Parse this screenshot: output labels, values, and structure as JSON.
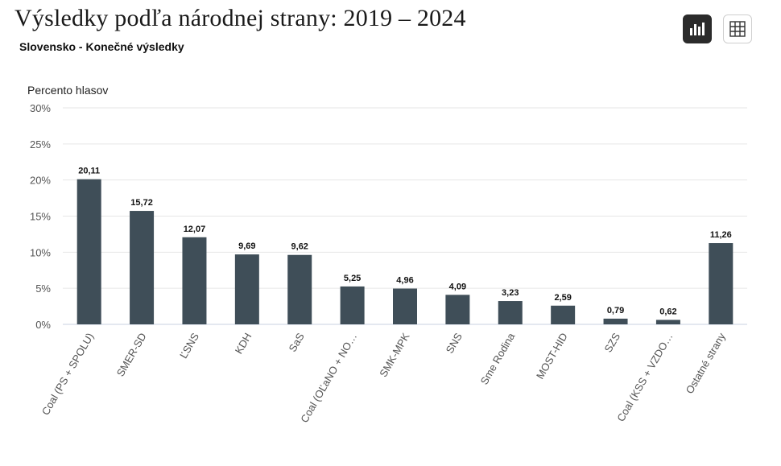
{
  "header": {
    "title": "Výsledky podľa národnej strany: 2019 – 2024",
    "subtitle": "Slovensko - Konečné výsledky"
  },
  "toolbar": {
    "chart_view_icon": "bar-chart-icon",
    "table_view_icon": "table-grid-icon"
  },
  "colors": {
    "bar": "#3f4e58",
    "grid": "#e6e6e6",
    "axis_text": "#555555",
    "active_button": "#2b2b2b"
  },
  "chart_data": {
    "type": "bar",
    "ylabel": "Percento hlasov",
    "ylim": [
      0,
      30
    ],
    "yticks": [
      "0%",
      "5%",
      "10%",
      "15%",
      "20%",
      "25%",
      "30%"
    ],
    "grid": true,
    "categories": [
      "Coal (PS + SPOLU)",
      "SMER-SD",
      "ĽSNS",
      "KDH",
      "SaS",
      "Coal (OĽaNO + NO…",
      "SMK-MPK",
      "SNS",
      "Sme Rodina",
      "MOST-HID",
      "SZS",
      "Coal (KSS + VZDO…",
      "Ostatné strany"
    ],
    "values": [
      20.11,
      15.72,
      12.07,
      9.69,
      9.62,
      5.25,
      4.96,
      4.09,
      3.23,
      2.59,
      0.79,
      0.62,
      11.26
    ],
    "value_labels": [
      "20,11",
      "15,72",
      "12,07",
      "9,69",
      "9,62",
      "5,25",
      "4,96",
      "4,09",
      "3,23",
      "2,59",
      "0,79",
      "0,62",
      "11,26"
    ]
  }
}
